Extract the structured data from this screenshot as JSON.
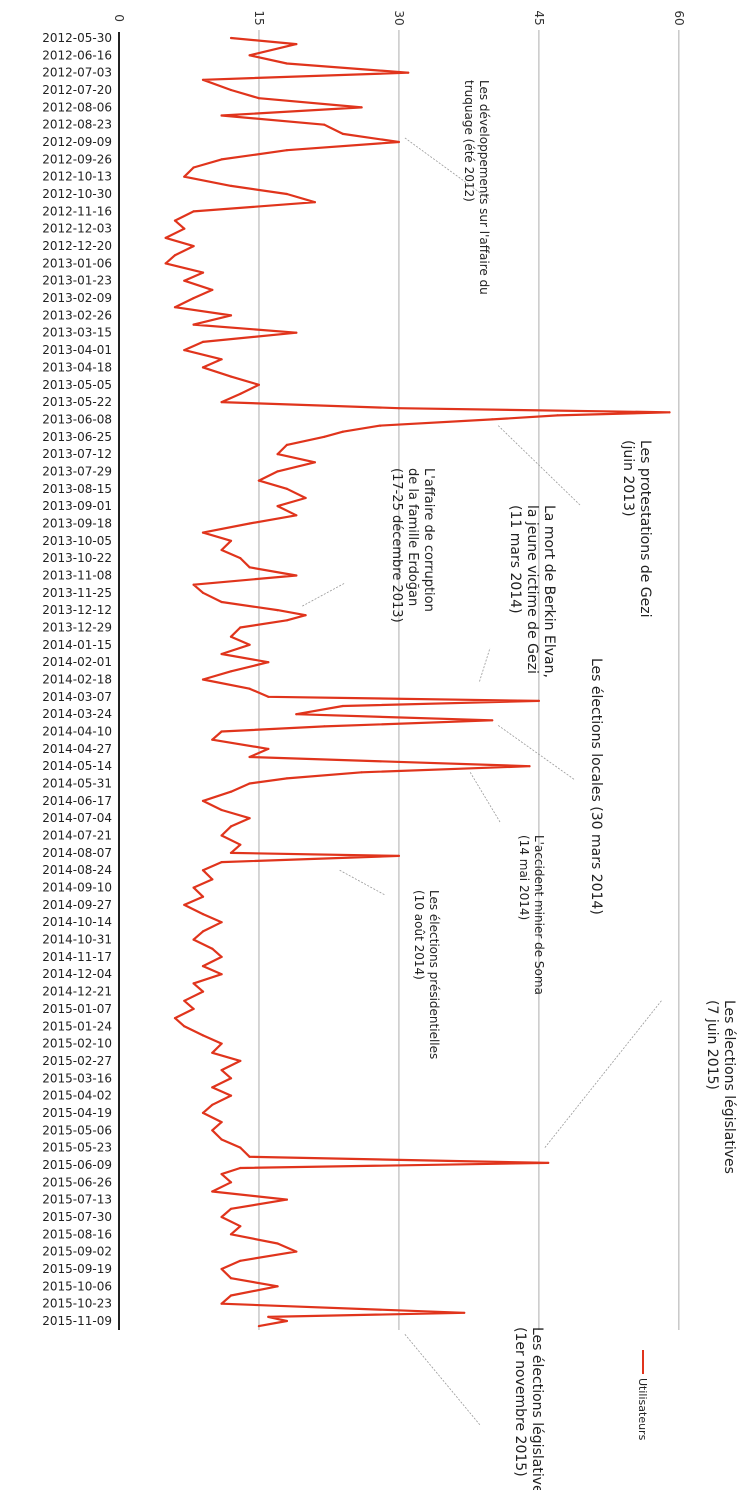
{
  "chart_data": {
    "type": "line",
    "orientation": "vertical",
    "legend": {
      "label": "Utilisateurs",
      "position": "bottom-right"
    },
    "value_axis": {
      "ticks": [
        0,
        15,
        30,
        45,
        60
      ],
      "range": [
        0,
        60
      ],
      "grid": true,
      "position": "top"
    },
    "date_labels": [
      "2012-05-30",
      "2012-06-16",
      "2012-07-03",
      "2012-07-20",
      "2012-08-06",
      "2012-08-23",
      "2012-09-09",
      "2012-09-26",
      "2012-10-13",
      "2012-10-30",
      "2012-11-16",
      "2012-12-03",
      "2012-12-20",
      "2013-01-06",
      "2013-01-23",
      "2013-02-09",
      "2013-02-26",
      "2013-03-15",
      "2013-04-01",
      "2013-04-18",
      "2013-05-05",
      "2013-05-22",
      "2013-06-08",
      "2013-06-25",
      "2013-07-12",
      "2013-07-29",
      "2013-08-15",
      "2013-09-01",
      "2013-09-18",
      "2013-10-05",
      "2013-10-22",
      "2013-11-08",
      "2013-11-25",
      "2013-12-12",
      "2013-12-29",
      "2014-01-15",
      "2014-02-01",
      "2014-02-18",
      "2014-03-07",
      "2014-03-24",
      "2014-04-10",
      "2014-04-27",
      "2014-05-14",
      "2014-05-31",
      "2014-06-17",
      "2014-07-04",
      "2014-07-21",
      "2014-08-07",
      "2014-08-24",
      "2014-09-10",
      "2014-09-27",
      "2014-10-14",
      "2014-10-31",
      "2014-11-17",
      "2014-12-04",
      "2014-12-21",
      "2015-01-07",
      "2015-01-24",
      "2015-02-10",
      "2015-02-27",
      "2015-03-16",
      "2015-04-02",
      "2015-04-19",
      "2015-05-06",
      "2015-05-23",
      "2015-06-09",
      "2015-06-26",
      "2015-07-13",
      "2015-07-30",
      "2015-08-16",
      "2015-09-02",
      "2015-09-19",
      "2015-10-06",
      "2015-10-23",
      "2015-11-09"
    ],
    "series": [
      {
        "name": "Utilisateurs",
        "color": "#e0341c",
        "values": [
          {
            "date": "2012-05-30",
            "value": 12
          },
          {
            "date": "2012-06-05",
            "value": 19
          },
          {
            "date": "2012-06-16",
            "value": 14
          },
          {
            "date": "2012-06-24",
            "value": 18
          },
          {
            "date": "2012-07-03",
            "value": 31
          },
          {
            "date": "2012-07-10",
            "value": 9
          },
          {
            "date": "2012-07-20",
            "value": 12
          },
          {
            "date": "2012-07-28",
            "value": 15
          },
          {
            "date": "2012-08-06",
            "value": 26
          },
          {
            "date": "2012-08-14",
            "value": 11
          },
          {
            "date": "2012-08-23",
            "value": 22
          },
          {
            "date": "2012-09-01",
            "value": 24
          },
          {
            "date": "2012-09-09",
            "value": 30
          },
          {
            "date": "2012-09-17",
            "value": 18
          },
          {
            "date": "2012-09-26",
            "value": 11
          },
          {
            "date": "2012-10-04",
            "value": 8
          },
          {
            "date": "2012-10-13",
            "value": 7
          },
          {
            "date": "2012-10-22",
            "value": 12
          },
          {
            "date": "2012-10-30",
            "value": 18
          },
          {
            "date": "2012-11-07",
            "value": 21
          },
          {
            "date": "2012-11-16",
            "value": 8
          },
          {
            "date": "2012-11-25",
            "value": 6
          },
          {
            "date": "2012-12-03",
            "value": 7
          },
          {
            "date": "2012-12-12",
            "value": 5
          },
          {
            "date": "2012-12-20",
            "value": 8
          },
          {
            "date": "2012-12-29",
            "value": 6
          },
          {
            "date": "2013-01-06",
            "value": 5
          },
          {
            "date": "2013-01-15",
            "value": 9
          },
          {
            "date": "2013-01-23",
            "value": 7
          },
          {
            "date": "2013-02-01",
            "value": 10
          },
          {
            "date": "2013-02-09",
            "value": 8
          },
          {
            "date": "2013-02-18",
            "value": 6
          },
          {
            "date": "2013-02-26",
            "value": 12
          },
          {
            "date": "2013-03-07",
            "value": 8
          },
          {
            "date": "2013-03-15",
            "value": 19
          },
          {
            "date": "2013-03-24",
            "value": 9
          },
          {
            "date": "2013-04-01",
            "value": 7
          },
          {
            "date": "2013-04-10",
            "value": 11
          },
          {
            "date": "2013-04-18",
            "value": 9
          },
          {
            "date": "2013-04-27",
            "value": 12
          },
          {
            "date": "2013-05-05",
            "value": 15
          },
          {
            "date": "2013-05-14",
            "value": 13
          },
          {
            "date": "2013-05-22",
            "value": 11
          },
          {
            "date": "2013-05-28",
            "value": 30
          },
          {
            "date": "2013-06-01",
            "value": 59
          },
          {
            "date": "2013-06-04",
            "value": 47
          },
          {
            "date": "2013-06-08",
            "value": 40
          },
          {
            "date": "2013-06-14",
            "value": 28
          },
          {
            "date": "2013-06-20",
            "value": 24
          },
          {
            "date": "2013-06-25",
            "value": 22
          },
          {
            "date": "2013-07-03",
            "value": 18
          },
          {
            "date": "2013-07-12",
            "value": 17
          },
          {
            "date": "2013-07-20",
            "value": 21
          },
          {
            "date": "2013-07-29",
            "value": 17
          },
          {
            "date": "2013-08-07",
            "value": 15
          },
          {
            "date": "2013-08-15",
            "value": 18
          },
          {
            "date": "2013-08-24",
            "value": 20
          },
          {
            "date": "2013-09-01",
            "value": 17
          },
          {
            "date": "2013-09-10",
            "value": 19
          },
          {
            "date": "2013-09-18",
            "value": 14
          },
          {
            "date": "2013-09-27",
            "value": 9
          },
          {
            "date": "2013-10-05",
            "value": 12
          },
          {
            "date": "2013-10-14",
            "value": 11
          },
          {
            "date": "2013-10-22",
            "value": 13
          },
          {
            "date": "2013-10-31",
            "value": 14
          },
          {
            "date": "2013-11-08",
            "value": 19
          },
          {
            "date": "2013-11-17",
            "value": 8
          },
          {
            "date": "2013-11-25",
            "value": 9
          },
          {
            "date": "2013-12-04",
            "value": 11
          },
          {
            "date": "2013-12-12",
            "value": 17
          },
          {
            "date": "2013-12-17",
            "value": 20
          },
          {
            "date": "2013-12-22",
            "value": 18
          },
          {
            "date": "2013-12-29",
            "value": 13
          },
          {
            "date": "2014-01-07",
            "value": 12
          },
          {
            "date": "2014-01-15",
            "value": 14
          },
          {
            "date": "2014-01-24",
            "value": 11
          },
          {
            "date": "2014-02-01",
            "value": 16
          },
          {
            "date": "2014-02-10",
            "value": 12
          },
          {
            "date": "2014-02-18",
            "value": 9
          },
          {
            "date": "2014-02-27",
            "value": 14
          },
          {
            "date": "2014-03-07",
            "value": 16
          },
          {
            "date": "2014-03-11",
            "value": 45
          },
          {
            "date": "2014-03-16",
            "value": 24
          },
          {
            "date": "2014-03-24",
            "value": 19
          },
          {
            "date": "2014-03-30",
            "value": 40
          },
          {
            "date": "2014-04-05",
            "value": 22
          },
          {
            "date": "2014-04-10",
            "value": 11
          },
          {
            "date": "2014-04-18",
            "value": 10
          },
          {
            "date": "2014-04-27",
            "value": 16
          },
          {
            "date": "2014-05-05",
            "value": 14
          },
          {
            "date": "2014-05-14",
            "value": 44
          },
          {
            "date": "2014-05-20",
            "value": 26
          },
          {
            "date": "2014-05-26",
            "value": 18
          },
          {
            "date": "2014-05-31",
            "value": 14
          },
          {
            "date": "2014-06-08",
            "value": 12
          },
          {
            "date": "2014-06-17",
            "value": 9
          },
          {
            "date": "2014-06-26",
            "value": 11
          },
          {
            "date": "2014-07-04",
            "value": 14
          },
          {
            "date": "2014-07-12",
            "value": 12
          },
          {
            "date": "2014-07-21",
            "value": 11
          },
          {
            "date": "2014-07-30",
            "value": 13
          },
          {
            "date": "2014-08-07",
            "value": 12
          },
          {
            "date": "2014-08-10",
            "value": 30
          },
          {
            "date": "2014-08-16",
            "value": 11
          },
          {
            "date": "2014-08-24",
            "value": 9
          },
          {
            "date": "2014-09-02",
            "value": 10
          },
          {
            "date": "2014-09-10",
            "value": 8
          },
          {
            "date": "2014-09-19",
            "value": 9
          },
          {
            "date": "2014-09-27",
            "value": 7
          },
          {
            "date": "2014-10-06",
            "value": 9
          },
          {
            "date": "2014-10-14",
            "value": 11
          },
          {
            "date": "2014-10-23",
            "value": 9
          },
          {
            "date": "2014-10-31",
            "value": 8
          },
          {
            "date": "2014-11-09",
            "value": 10
          },
          {
            "date": "2014-11-17",
            "value": 11
          },
          {
            "date": "2014-11-26",
            "value": 9
          },
          {
            "date": "2014-12-04",
            "value": 11
          },
          {
            "date": "2014-12-13",
            "value": 8
          },
          {
            "date": "2014-12-21",
            "value": 9
          },
          {
            "date": "2014-12-30",
            "value": 7
          },
          {
            "date": "2015-01-07",
            "value": 8
          },
          {
            "date": "2015-01-16",
            "value": 6
          },
          {
            "date": "2015-01-24",
            "value": 7
          },
          {
            "date": "2015-02-02",
            "value": 9
          },
          {
            "date": "2015-02-10",
            "value": 11
          },
          {
            "date": "2015-02-19",
            "value": 10
          },
          {
            "date": "2015-02-27",
            "value": 13
          },
          {
            "date": "2015-03-08",
            "value": 11
          },
          {
            "date": "2015-03-16",
            "value": 12
          },
          {
            "date": "2015-03-25",
            "value": 10
          },
          {
            "date": "2015-04-02",
            "value": 12
          },
          {
            "date": "2015-04-11",
            "value": 10
          },
          {
            "date": "2015-04-19",
            "value": 9
          },
          {
            "date": "2015-04-28",
            "value": 11
          },
          {
            "date": "2015-05-06",
            "value": 10
          },
          {
            "date": "2015-05-15",
            "value": 11
          },
          {
            "date": "2015-05-23",
            "value": 13
          },
          {
            "date": "2015-06-01",
            "value": 14
          },
          {
            "date": "2015-06-07",
            "value": 46
          },
          {
            "date": "2015-06-12",
            "value": 13
          },
          {
            "date": "2015-06-18",
            "value": 11
          },
          {
            "date": "2015-06-26",
            "value": 12
          },
          {
            "date": "2015-07-05",
            "value": 10
          },
          {
            "date": "2015-07-13",
            "value": 18
          },
          {
            "date": "2015-07-22",
            "value": 12
          },
          {
            "date": "2015-07-30",
            "value": 11
          },
          {
            "date": "2015-08-08",
            "value": 13
          },
          {
            "date": "2015-08-16",
            "value": 12
          },
          {
            "date": "2015-08-25",
            "value": 17
          },
          {
            "date": "2015-09-02",
            "value": 19
          },
          {
            "date": "2015-09-11",
            "value": 13
          },
          {
            "date": "2015-09-19",
            "value": 11
          },
          {
            "date": "2015-09-28",
            "value": 12
          },
          {
            "date": "2015-10-06",
            "value": 17
          },
          {
            "date": "2015-10-15",
            "value": 12
          },
          {
            "date": "2015-10-23",
            "value": 11
          },
          {
            "date": "2015-11-01",
            "value": 37
          },
          {
            "date": "2015-11-05",
            "value": 16
          },
          {
            "date": "2015-11-09",
            "value": 18
          },
          {
            "date": "2015-11-14",
            "value": 15
          }
        ]
      }
    ],
    "annotations": [
      {
        "id": "a1",
        "lines": [
          "Les développements sur l'affaire du",
          "truquage (été 2012)"
        ],
        "date": "2012-09-05",
        "value": 30
      },
      {
        "id": "a2",
        "lines": [
          "Les protestations de Gezi",
          "(juin 2013)"
        ],
        "date": "2013-06-14",
        "value": 40
      },
      {
        "id": "a3",
        "lines": [
          "La mort de Berkin Elvan,",
          "la jeune victime de Gezi",
          "(11 mars 2014)"
        ],
        "date": "2014-02-20",
        "value": 38
      },
      {
        "id": "a4",
        "lines": [
          "Les élections locales (30 mars 2014)"
        ],
        "date": "2014-04-04",
        "value": 40
      },
      {
        "id": "a5",
        "lines": [
          "L'affaire de corruption",
          "de la famille Erdoğan",
          "(17-25 décembre 2013)"
        ],
        "date": "2013-12-08",
        "value": 19
      },
      {
        "id": "a6",
        "lines": [
          "L'accident minier de Soma",
          "(14 mai 2014)"
        ],
        "date": "2014-05-20",
        "value": 37
      },
      {
        "id": "a7",
        "lines": [
          "Les élections présidentielles",
          "(10 août 2014)"
        ],
        "date": "2014-08-24",
        "value": 23
      },
      {
        "id": "a8",
        "lines": [
          "Les élections législatives",
          "(7 juin 2015)"
        ],
        "date": "2015-05-23",
        "value": 45
      },
      {
        "id": "a9",
        "lines": [
          "Les élections législatives",
          "(1er novembre 2015)"
        ],
        "date": "2015-11-22",
        "value": 30
      }
    ]
  }
}
